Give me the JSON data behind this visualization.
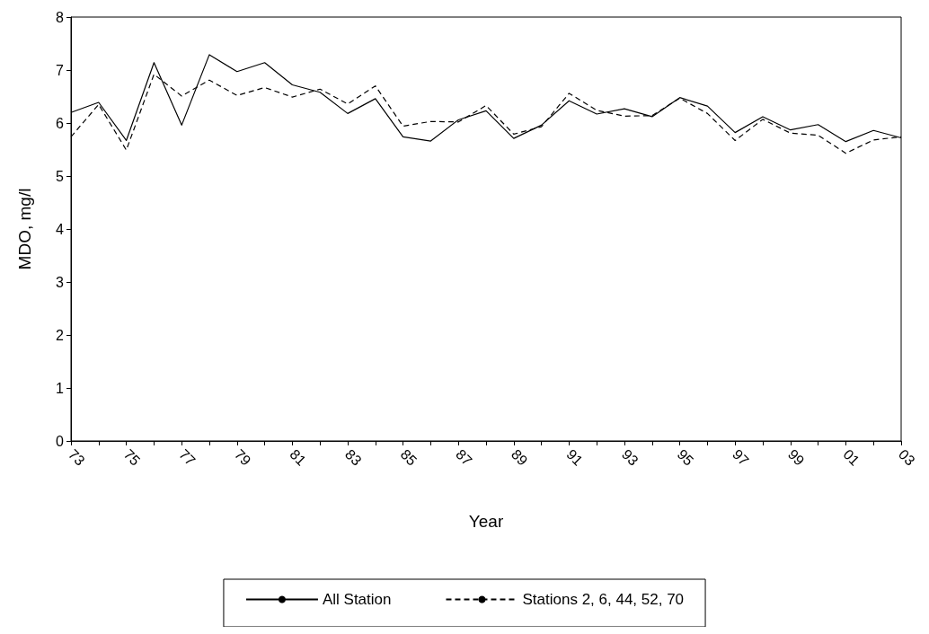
{
  "chart_data": {
    "type": "line",
    "xlabel": "Year",
    "ylabel": "MDO, mg/l",
    "categories": [
      "73",
      null,
      "75",
      null,
      "77",
      null,
      "79",
      null,
      "81",
      null,
      "83",
      null,
      "85",
      null,
      "87",
      null,
      "89",
      null,
      "91",
      null,
      "93",
      null,
      "95",
      null,
      "97",
      null,
      "99",
      null,
      "01",
      null,
      "03"
    ],
    "series": [
      {
        "name": "All Station",
        "color": "#000000",
        "line_style": "solid",
        "values": [
          6.2,
          6.39,
          5.67,
          7.14,
          5.96,
          7.29,
          6.97,
          7.14,
          6.72,
          6.58,
          6.18,
          6.46,
          5.74,
          5.66,
          6.06,
          6.23,
          5.71,
          5.96,
          6.42,
          6.17,
          6.27,
          6.12,
          6.48,
          6.32,
          5.82,
          6.12,
          5.87,
          5.97,
          5.65,
          5.86,
          5.72
        ]
      },
      {
        "name": "Stations 2, 6, 44, 52, 70",
        "color": "#000000",
        "line_style": "dashed",
        "values": [
          5.74,
          6.35,
          5.49,
          6.92,
          6.51,
          6.81,
          6.52,
          6.67,
          6.49,
          6.64,
          6.36,
          6.7,
          5.94,
          6.03,
          6.02,
          6.33,
          5.79,
          5.93,
          6.56,
          6.24,
          6.13,
          6.14,
          6.47,
          6.18,
          5.67,
          6.07,
          5.81,
          5.77,
          5.43,
          5.68,
          5.74
        ]
      }
    ],
    "ylim": [
      0,
      8
    ],
    "yticks": [
      0,
      1,
      2,
      3,
      4,
      5,
      6,
      7,
      8
    ],
    "grid": false,
    "legend": "bottom"
  }
}
